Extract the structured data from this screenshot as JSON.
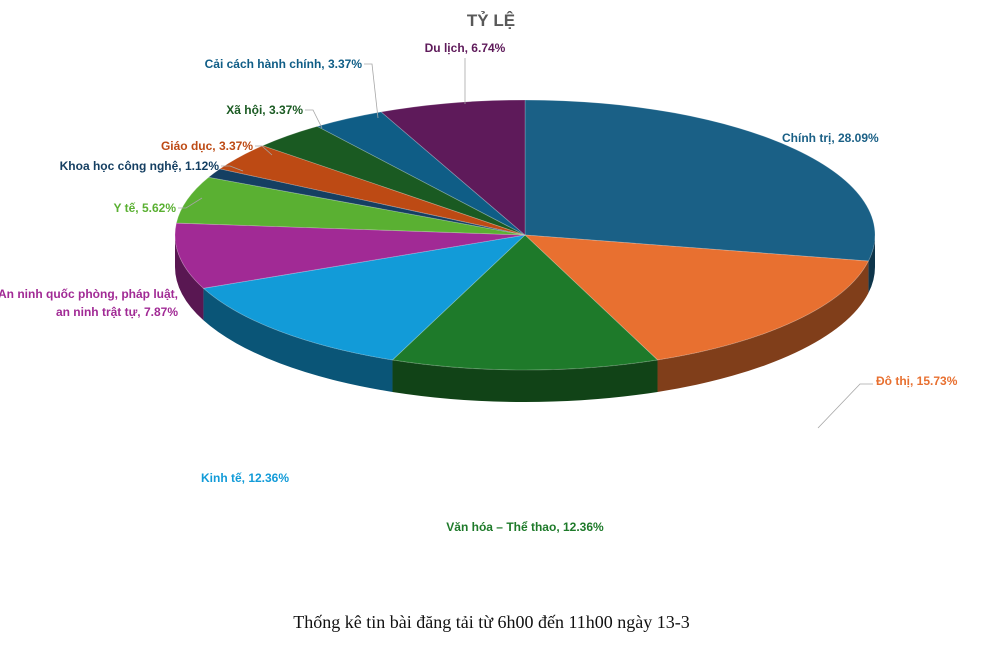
{
  "chart_data": {
    "type": "pie",
    "title": "TỶ LỆ",
    "slices": [
      {
        "name": "Chính trị",
        "value": 28.09,
        "label": "Chính trị, 28.09%",
        "color": "#1a6086"
      },
      {
        "name": "Đô thị",
        "value": 15.73,
        "label": "Đô thị, 15.73%",
        "color": "#e87030"
      },
      {
        "name": "Văn hóa – Thể thao",
        "value": 12.36,
        "label": "Văn hóa – Thể thao, 12.36%",
        "color": "#1e7a2a"
      },
      {
        "name": "Kinh tế",
        "value": 12.36,
        "label": "Kinh tế, 12.36%",
        "color": "#129bd8"
      },
      {
        "name": "An ninh quốc phòng, pháp luật, an ninh trật tự",
        "value": 7.87,
        "label": [
          "An ninh quốc phòng, pháp luật,",
          "an ninh trật tự, 7.87%"
        ],
        "color": "#a12a95"
      },
      {
        "name": "Y tế",
        "value": 5.62,
        "label": "Y tế, 5.62%",
        "color": "#5ab032"
      },
      {
        "name": "Khoa học công nghệ",
        "value": 1.12,
        "label": "Khoa học công nghệ, 1.12%",
        "color": "#153f62"
      },
      {
        "name": "Giáo dục",
        "value": 3.37,
        "label": "Giáo dục, 3.37%",
        "color": "#bd4a14"
      },
      {
        "name": "Xã hội",
        "value": 3.37,
        "label": "Xã hội, 3.37%",
        "color": "#1a5a22"
      },
      {
        "name": "Cải cách hành chính",
        "value": 3.37,
        "label": "Cải cách hành chính, 3.37%",
        "color": "#0f5d86"
      },
      {
        "name": "Du lịch",
        "value": 6.74,
        "label": "Du lịch, 6.74%",
        "color": "#5e1a5a"
      }
    ],
    "label_colors": {
      "Chính trị": "#1a6086",
      "Đô thị": "#e87030",
      "Văn hóa – Thể thao": "#1e7a2a",
      "Kinh tế": "#129bd8",
      "An ninh quốc phòng, pháp luật, an ninh trật tự": "#a12a95",
      "Y tế": "#5ab032",
      "Khoa học công nghệ": "#153f62",
      "Giáo dục": "#bd4a14",
      "Xã hội": "#1a5a22",
      "Cải cách hành chính": "#0f5d86",
      "Du lịch": "#5e1a5a"
    },
    "legend": "none",
    "style": "3d-exploded-pie"
  },
  "caption": "Thống kê tin bài đăng tải từ 6h00 đến 11h00 ngày 13-3"
}
